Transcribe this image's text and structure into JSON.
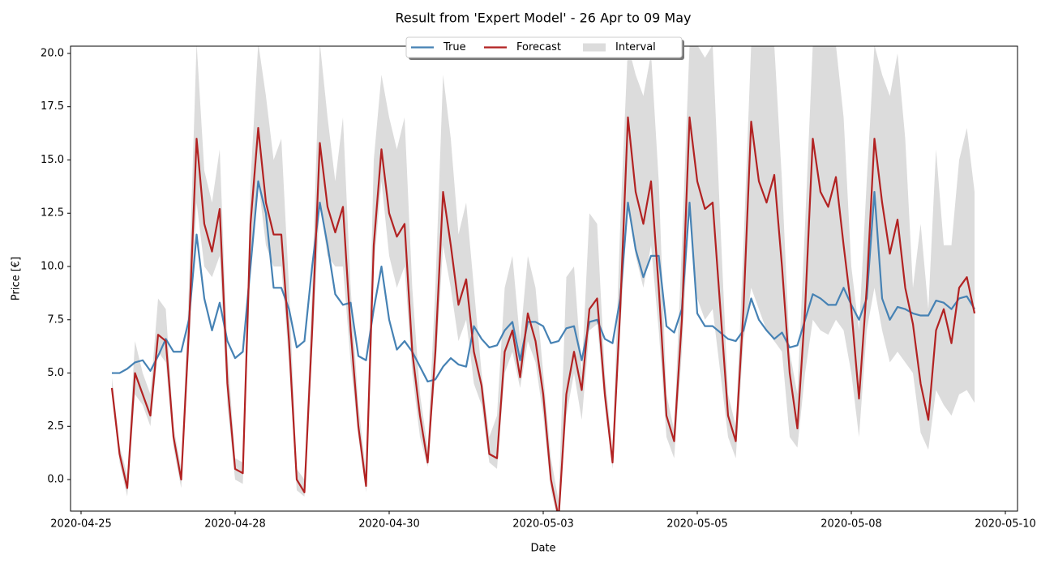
{
  "chart_data": {
    "type": "line",
    "title": "Result from 'Expert Model' - 26 Apr to 09 May",
    "xlabel": "Date",
    "ylabel": "Price [€]",
    "x": [
      "2020-04-26T00:00",
      "2020-04-26T03:00",
      "2020-04-26T06:00",
      "2020-04-26T09:00",
      "2020-04-26T12:00",
      "2020-04-26T15:00",
      "2020-04-26T18:00",
      "2020-04-26T21:00",
      "2020-04-27T00:00",
      "2020-04-27T03:00",
      "2020-04-27T06:00",
      "2020-04-27T09:00",
      "2020-04-27T12:00",
      "2020-04-27T15:00",
      "2020-04-27T18:00",
      "2020-04-27T21:00",
      "2020-04-28T00:00",
      "2020-04-28T03:00",
      "2020-04-28T06:00",
      "2020-04-28T09:00",
      "2020-04-28T12:00",
      "2020-04-28T15:00",
      "2020-04-28T18:00",
      "2020-04-28T21:00",
      "2020-04-29T00:00",
      "2020-04-29T03:00",
      "2020-04-29T06:00",
      "2020-04-29T09:00",
      "2020-04-29T12:00",
      "2020-04-29T15:00",
      "2020-04-29T18:00",
      "2020-04-29T21:00",
      "2020-04-30T00:00",
      "2020-04-30T03:00",
      "2020-04-30T06:00",
      "2020-04-30T09:00",
      "2020-04-30T12:00",
      "2020-04-30T15:00",
      "2020-04-30T18:00",
      "2020-04-30T21:00",
      "2020-05-01T00:00",
      "2020-05-01T03:00",
      "2020-05-01T06:00",
      "2020-05-01T09:00",
      "2020-05-01T12:00",
      "2020-05-01T15:00",
      "2020-05-01T18:00",
      "2020-05-01T21:00",
      "2020-05-02T00:00",
      "2020-05-02T03:00",
      "2020-05-02T06:00",
      "2020-05-02T09:00",
      "2020-05-02T12:00",
      "2020-05-02T15:00",
      "2020-05-02T18:00",
      "2020-05-02T21:00",
      "2020-05-03T00:00",
      "2020-05-03T03:00",
      "2020-05-03T06:00",
      "2020-05-03T09:00",
      "2020-05-03T12:00",
      "2020-05-03T15:00",
      "2020-05-03T18:00",
      "2020-05-03T21:00",
      "2020-05-04T00:00",
      "2020-05-04T03:00",
      "2020-05-04T06:00",
      "2020-05-04T09:00",
      "2020-05-04T12:00",
      "2020-05-04T15:00",
      "2020-05-04T18:00",
      "2020-05-04T21:00",
      "2020-05-05T00:00",
      "2020-05-05T03:00",
      "2020-05-05T06:00",
      "2020-05-05T09:00",
      "2020-05-05T12:00",
      "2020-05-05T15:00",
      "2020-05-05T18:00",
      "2020-05-05T21:00",
      "2020-05-06T00:00",
      "2020-05-06T03:00",
      "2020-05-06T06:00",
      "2020-05-06T09:00",
      "2020-05-06T12:00",
      "2020-05-06T15:00",
      "2020-05-06T18:00",
      "2020-05-06T21:00",
      "2020-05-07T00:00",
      "2020-05-07T03:00",
      "2020-05-07T06:00",
      "2020-05-07T09:00",
      "2020-05-07T12:00",
      "2020-05-07T15:00",
      "2020-05-07T18:00",
      "2020-05-07T21:00",
      "2020-05-08T00:00",
      "2020-05-08T03:00",
      "2020-05-08T06:00",
      "2020-05-08T09:00",
      "2020-05-08T12:00",
      "2020-05-08T15:00",
      "2020-05-08T18:00",
      "2020-05-08T21:00",
      "2020-05-09T00:00",
      "2020-05-09T03:00",
      "2020-05-09T06:00",
      "2020-05-09T09:00",
      "2020-05-09T12:00",
      "2020-05-09T15:00",
      "2020-05-09T18:00",
      "2020-05-09T21:00",
      "2020-05-10T00:00"
    ],
    "series": [
      {
        "name": "True",
        "color": "#4682b4",
        "values": [
          5.0,
          5.0,
          5.2,
          5.5,
          5.6,
          5.1,
          5.8,
          6.6,
          6.0,
          6.0,
          7.5,
          11.5,
          8.5,
          7.0,
          8.3,
          6.5,
          5.7,
          6.0,
          10,
          14,
          12.5,
          9,
          9.0,
          8.0,
          6.2,
          6.5,
          10,
          13,
          11,
          8.7,
          8.2,
          8.3,
          5.8,
          5.6,
          8,
          10,
          7.5,
          6.1,
          6.5,
          6.0,
          5.3,
          4.6,
          4.7,
          5.3,
          5.7,
          5.4,
          5.3,
          7.2,
          6.6,
          6.2,
          6.3,
          7.0,
          7.4,
          5.6,
          7.4,
          7.4,
          7.2,
          6.4,
          6.5,
          7.1,
          7.2,
          5.6,
          7.4,
          7.5,
          6.6,
          6.4,
          8.5,
          13,
          10.8,
          9.5,
          10.5,
          10.5,
          7.2,
          6.9,
          8.0,
          13.0,
          7.8,
          7.2,
          7.2,
          6.9,
          6.6,
          6.5,
          7.0,
          8.5,
          7.5,
          7.0,
          6.6,
          6.9,
          6.2,
          6.3,
          7.5,
          8.7,
          8.5,
          8.2,
          8.2,
          9.0,
          8.2,
          7.5,
          8.5,
          13.5,
          8.5,
          7.5,
          8.1,
          8.0,
          7.8,
          7.7,
          7.7,
          8.4,
          8.3,
          8.0,
          8.5,
          8.6,
          8.0
        ]
      },
      {
        "name": "Forecast",
        "color": "#b22222",
        "values": [
          4.3,
          1.2,
          -0.4,
          5.0,
          4.0,
          3.0,
          6.8,
          6.5,
          2.0,
          0.0,
          7.0,
          16.0,
          12.0,
          10.7,
          12.7,
          4.5,
          0.5,
          0.3,
          12,
          16.5,
          13,
          11.5,
          11.5,
          6.5,
          0.0,
          -0.6,
          7,
          15.8,
          12.8,
          11.6,
          12.8,
          7.0,
          2.5,
          -0.3,
          11,
          15.5,
          12.5,
          11.4,
          12.0,
          6.0,
          3.0,
          0.8,
          6,
          13.5,
          11,
          8.2,
          9.4,
          6.0,
          4.4,
          1.2,
          1.0,
          6.0,
          7.0,
          4.8,
          7.8,
          6.5,
          4.0,
          0.0,
          -1.8,
          4.0,
          6.0,
          4.2,
          8.0,
          8.5,
          4.0,
          0.8,
          8.0,
          17.0,
          13.5,
          12.0,
          14.0,
          9.0,
          3.0,
          1.8,
          7.5,
          17.0,
          14.0,
          12.7,
          13.0,
          8.0,
          3.0,
          1.8,
          8.0,
          16.8,
          14.0,
          13.0,
          14.3,
          10.0,
          5.0,
          2.4,
          8.0,
          16.0,
          13.5,
          12.8,
          14.2,
          11.0,
          8.0,
          3.8,
          9.0,
          16.0,
          13.0,
          10.6,
          12.2,
          9.0,
          7.3,
          4.5,
          2.8,
          7.0,
          8.0,
          6.4,
          9.0,
          9.5,
          7.8
        ]
      },
      {
        "name": "Interval",
        "color": "#dcdcdc",
        "lower": [
          4.0,
          0.8,
          -0.8,
          4.0,
          3.5,
          2.5,
          6.0,
          5.5,
          1.5,
          -0.4,
          6.0,
          13.0,
          10.0,
          9.5,
          10.5,
          3.5,
          0.0,
          -0.2,
          10,
          14,
          11,
          10,
          10,
          5.5,
          -0.5,
          -0.8,
          6,
          13,
          10.5,
          10,
          10,
          5.5,
          2,
          -0.6,
          10,
          14,
          10.5,
          9,
          10,
          5,
          2,
          0.6,
          5,
          11,
          9,
          6.5,
          7.5,
          4.5,
          3.5,
          0.8,
          0.5,
          5,
          6,
          4.3,
          6.5,
          5.5,
          3,
          -0.5,
          -2,
          3,
          5,
          2.8,
          7,
          7.3,
          3.5,
          0.5,
          7,
          13,
          10.5,
          9,
          11,
          7,
          2,
          1.0,
          6,
          13,
          8.5,
          7.5,
          8,
          5,
          2,
          1,
          6.5,
          9,
          8,
          7,
          6.5,
          6,
          2,
          1.5,
          5,
          7.5,
          7,
          6.8,
          7.5,
          7,
          5,
          2,
          7,
          9,
          7,
          5.5,
          6,
          5.5,
          5,
          2.2,
          1.4,
          4.2,
          3.5,
          3,
          4,
          4.2,
          3.6
        ],
        "upper": [
          4.8,
          1.6,
          0.2,
          6.5,
          5.0,
          4.0,
          8.5,
          8.0,
          2.5,
          0.5,
          9,
          20.5,
          14.5,
          13,
          15.5,
          6,
          1,
          0.8,
          14,
          20.5,
          18,
          15,
          16,
          9,
          0.5,
          0,
          9,
          20.5,
          17,
          14,
          17,
          9,
          3.5,
          0.3,
          15,
          19,
          17,
          15.5,
          17,
          9,
          4,
          1.5,
          9,
          19,
          16,
          11.5,
          13,
          9,
          5,
          2,
          3,
          9,
          10.5,
          6.5,
          10.5,
          9,
          5,
          1,
          -1,
          9.5,
          10,
          5,
          12.5,
          12,
          5,
          1.3,
          12,
          20.4,
          19,
          18,
          20,
          14,
          4,
          2.3,
          11,
          20.4,
          20.4,
          19.8,
          20.4,
          12,
          4,
          2.5,
          11,
          20.4,
          20.4,
          20.4,
          20.4,
          14,
          6,
          4,
          12,
          20.4,
          20.4,
          20.4,
          20.4,
          17,
          10,
          7,
          14,
          20.4,
          19,
          18,
          20,
          16,
          9,
          12,
          8,
          15.5,
          11,
          11,
          15,
          16.5,
          13.5
        ]
      }
    ],
    "xlim": [
      "2020-04-25T07:54",
      "2020-05-10T16:44"
    ],
    "xticks": [
      {
        "value": "2020-04-25T12:00",
        "label": "2020-04-25"
      },
      {
        "value": "2020-04-28T00:00",
        "label": "2020-04-28"
      },
      {
        "value": "2020-04-30T12:00",
        "label": "2020-04-30"
      },
      {
        "value": "2020-05-03T00:00",
        "label": "2020-05-03"
      },
      {
        "value": "2020-05-05T12:00",
        "label": "2020-05-05"
      },
      {
        "value": "2020-05-08T00:00",
        "label": "2020-05-08"
      },
      {
        "value": "2020-05-10T12:00",
        "label": "2020-05-10"
      }
    ],
    "ylim": [
      -1.48,
      20.34
    ],
    "yticks": [
      {
        "value": 0,
        "label": "0.0"
      },
      2.5,
      {
        "value": 5,
        "label": "5.0"
      },
      7.5,
      {
        "value": 10,
        "label": "10.0"
      },
      12.5,
      {
        "value": 15,
        "label": "15.0"
      },
      17.5,
      {
        "value": 20,
        "label": "20.0"
      }
    ],
    "legend": "upper center"
  }
}
